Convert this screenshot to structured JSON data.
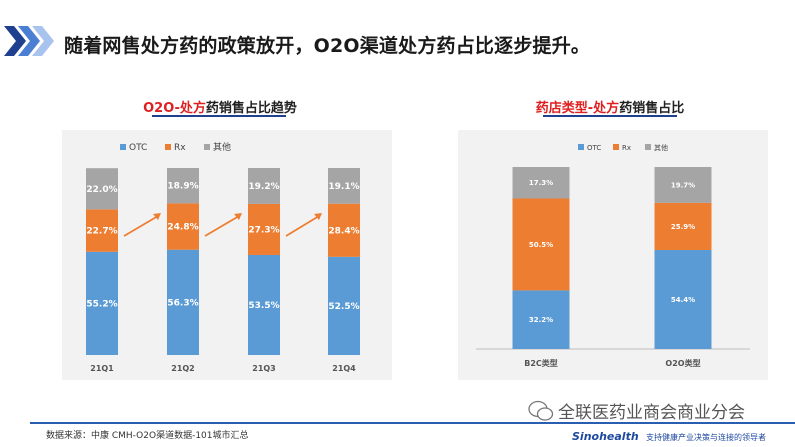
{
  "header": {
    "title": "随着网售处方药的政策放开，O2O渠道处方药占比逐步提升。"
  },
  "colors": {
    "otc": "#5b9bd5",
    "rx": "#ed7d31",
    "other": "#a5a5a5",
    "accent": "#2a5db0"
  },
  "chart_data": [
    {
      "type": "bar",
      "stacked": true,
      "title_red": "O2O-处方",
      "title_dark": "药销售占比趋势",
      "categories": [
        "21Q1",
        "21Q2",
        "21Q3",
        "21Q4"
      ],
      "legend": [
        "OTC",
        "Rx",
        "其他"
      ],
      "series": [
        {
          "name": "OTC",
          "values": [
            55.2,
            56.3,
            53.5,
            52.5
          ],
          "labels": [
            "55.2%",
            "56.3%",
            "53.5%",
            "52.5%"
          ]
        },
        {
          "name": "Rx",
          "values": [
            22.7,
            24.8,
            27.3,
            28.4
          ],
          "labels": [
            "22.7%",
            "24.8%",
            "27.3%",
            "28.4%"
          ]
        },
        {
          "name": "其他",
          "values": [
            22.0,
            18.9,
            19.2,
            19.1
          ],
          "labels": [
            "22.0%",
            "18.9%",
            "19.2%",
            "19.1%"
          ]
        }
      ],
      "ylim": [
        0,
        100
      ],
      "annotations": [
        "trend-arrow",
        "trend-arrow",
        "trend-arrow"
      ]
    },
    {
      "type": "bar",
      "stacked": true,
      "title_red": "药店类型-处方",
      "title_dark": "药销售占比",
      "categories": [
        "B2C类型",
        "O2O类型"
      ],
      "legend": [
        "OTC",
        "Rx",
        "其他"
      ],
      "series": [
        {
          "name": "OTC",
          "values": [
            32.2,
            54.4
          ],
          "labels": [
            "32.2%",
            "54.4%"
          ]
        },
        {
          "name": "Rx",
          "values": [
            50.5,
            25.9
          ],
          "labels": [
            "50.5%",
            "25.9%"
          ]
        },
        {
          "name": "其他",
          "values": [
            17.3,
            19.7
          ],
          "labels": [
            "17.3%",
            "19.7%"
          ]
        }
      ],
      "ylim": [
        0,
        100
      ]
    }
  ],
  "footer": {
    "source": "数据来源：中康 CMH-O2O渠道数据-101城市汇总",
    "wechat": "全联医药业商会商业分会",
    "brand": "Sinohealth",
    "slogan": "支持健康产业决策与连接的领导者"
  }
}
